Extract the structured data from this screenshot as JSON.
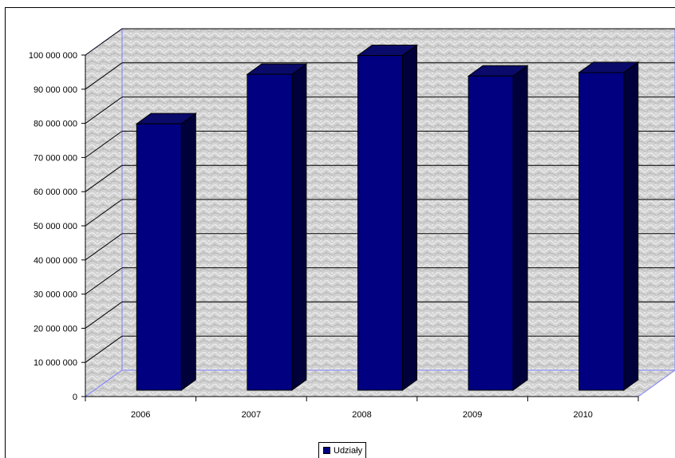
{
  "chart_data": {
    "type": "bar",
    "title": "",
    "xlabel": "",
    "ylabel": "",
    "categories": [
      "2006",
      "2007",
      "2008",
      "2009",
      "2010"
    ],
    "series": [
      {
        "name": "Udziały",
        "values": [
          78000000,
          92500000,
          98000000,
          92000000,
          93000000
        ]
      }
    ],
    "ylim": [
      0,
      100000000
    ],
    "yticks": [
      0,
      10000000,
      20000000,
      30000000,
      40000000,
      50000000,
      60000000,
      70000000,
      80000000,
      90000000,
      100000000
    ],
    "ytick_labels": [
      "0",
      "10 000 000",
      "20 000 000",
      "30 000 000",
      "40 000 000",
      "50 000 000",
      "60 000 000",
      "70 000 000",
      "80 000 000",
      "90 000 000",
      "100 000 000"
    ],
    "grid": true,
    "legend": "bottom-center",
    "bar_color": "#000080",
    "bar_side_color": "#00003a",
    "bar_top_color": "#0a0a6a"
  }
}
